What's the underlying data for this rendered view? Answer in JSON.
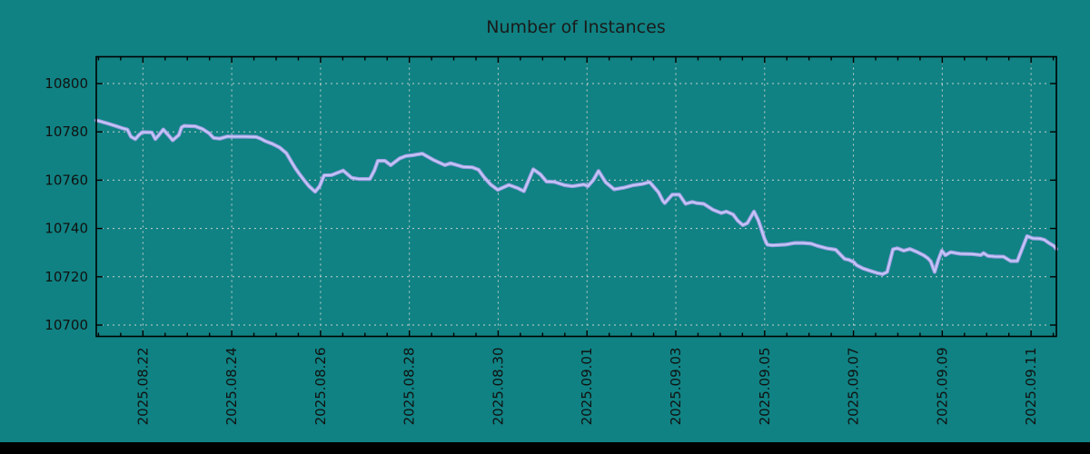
{
  "title": "Number of Instances",
  "colors": {
    "background": "#108283",
    "line_edge": "#9e9ee4",
    "line_core": "#c9c9f7",
    "grid": "#c9cfcf",
    "axis": "#000000",
    "text": "#111111",
    "bottom_bar": "#000000"
  },
  "chart_data": {
    "type": "line",
    "title": "Number of Instances",
    "xlabel": "",
    "ylabel": "",
    "legend": null,
    "grid": true,
    "x_axis": {
      "unit": "days relative to 2025.08.22",
      "tick_values": [
        0,
        2,
        4,
        6,
        8,
        10,
        12,
        14,
        16,
        18,
        20
      ],
      "tick_labels": [
        "2025.08.22",
        "2025.08.24",
        "2025.08.26",
        "2025.08.28",
        "2025.08.30",
        "2025.09.01",
        "2025.09.03",
        "2025.09.05",
        "2025.09.07",
        "2025.09.09",
        "2025.09.11"
      ],
      "minor_tick_step": 0.5,
      "range": [
        -1.05,
        20.57
      ]
    },
    "y_axis": {
      "tick_values": [
        10700,
        10720,
        10740,
        10760,
        10780,
        10800
      ],
      "tick_labels": [
        "10700",
        "10720",
        "10740",
        "10760",
        "10780",
        "10800"
      ],
      "range": [
        10695.3,
        10811.1
      ]
    },
    "series": [
      {
        "name": "instances",
        "points": [
          [
            -1.05,
            10784.8
          ],
          [
            -0.97,
            10784.4
          ],
          [
            -0.8,
            10783.5
          ],
          [
            -0.62,
            10782.5
          ],
          [
            -0.46,
            10781.5
          ],
          [
            -0.35,
            10781.0
          ],
          [
            -0.27,
            10778.0
          ],
          [
            -0.17,
            10777.0
          ],
          [
            -0.09,
            10778.7
          ],
          [
            -0.01,
            10779.9
          ],
          [
            0.2,
            10779.8
          ],
          [
            0.28,
            10777.0
          ],
          [
            0.36,
            10778.7
          ],
          [
            0.46,
            10781.0
          ],
          [
            0.57,
            10778.7
          ],
          [
            0.67,
            10776.5
          ],
          [
            0.81,
            10778.7
          ],
          [
            0.87,
            10781.9
          ],
          [
            0.93,
            10782.5
          ],
          [
            1.18,
            10782.3
          ],
          [
            1.34,
            10781.2
          ],
          [
            1.49,
            10779.4
          ],
          [
            1.59,
            10777.5
          ],
          [
            1.73,
            10777.2
          ],
          [
            1.9,
            10778.1
          ],
          [
            2.0,
            10778.0
          ],
          [
            2.3,
            10778.0
          ],
          [
            2.55,
            10777.9
          ],
          [
            2.65,
            10777.2
          ],
          [
            2.75,
            10776.2
          ],
          [
            2.92,
            10775.0
          ],
          [
            3.08,
            10773.5
          ],
          [
            3.23,
            10771.2
          ],
          [
            3.33,
            10768.1
          ],
          [
            3.43,
            10765.0
          ],
          [
            3.53,
            10762.4
          ],
          [
            3.63,
            10760.0
          ],
          [
            3.74,
            10757.5
          ],
          [
            3.88,
            10755.2
          ],
          [
            3.98,
            10757.5
          ],
          [
            4.08,
            10762.0
          ],
          [
            4.25,
            10762.1
          ],
          [
            4.51,
            10764.0
          ],
          [
            4.7,
            10761.0
          ],
          [
            4.86,
            10760.5
          ],
          [
            5.11,
            10760.5
          ],
          [
            5.21,
            10764.0
          ],
          [
            5.29,
            10768.0
          ],
          [
            5.45,
            10768.0
          ],
          [
            5.58,
            10766.2
          ],
          [
            5.78,
            10769.0
          ],
          [
            5.92,
            10770.0
          ],
          [
            6.07,
            10770.3
          ],
          [
            6.29,
            10771.0
          ],
          [
            6.54,
            10768.4
          ],
          [
            6.8,
            10766.2
          ],
          [
            6.93,
            10767.0
          ],
          [
            7.21,
            10765.5
          ],
          [
            7.42,
            10765.3
          ],
          [
            7.56,
            10764.3
          ],
          [
            7.68,
            10761.3
          ],
          [
            7.83,
            10758.2
          ],
          [
            7.99,
            10756.0
          ],
          [
            8.24,
            10758.0
          ],
          [
            8.44,
            10756.7
          ],
          [
            8.58,
            10755.4
          ],
          [
            8.79,
            10764.5
          ],
          [
            8.95,
            10762.4
          ],
          [
            9.09,
            10759.4
          ],
          [
            9.26,
            10759.3
          ],
          [
            9.5,
            10757.9
          ],
          [
            9.67,
            10757.5
          ],
          [
            9.93,
            10758.2
          ],
          [
            10.02,
            10757.5
          ],
          [
            10.14,
            10760.0
          ],
          [
            10.26,
            10763.8
          ],
          [
            10.42,
            10759.1
          ],
          [
            10.61,
            10756.2
          ],
          [
            10.83,
            10756.9
          ],
          [
            11.04,
            10757.9
          ],
          [
            11.24,
            10758.4
          ],
          [
            11.41,
            10759.2
          ],
          [
            11.61,
            10755.0
          ],
          [
            11.71,
            10751.4
          ],
          [
            11.75,
            10750.5
          ],
          [
            11.92,
            10754.0
          ],
          [
            12.08,
            10754.0
          ],
          [
            12.22,
            10750.2
          ],
          [
            12.37,
            10751.0
          ],
          [
            12.47,
            10750.5
          ],
          [
            12.63,
            10750.2
          ],
          [
            12.84,
            10747.7
          ],
          [
            13.02,
            10746.4
          ],
          [
            13.14,
            10747.0
          ],
          [
            13.29,
            10745.8
          ],
          [
            13.39,
            10743.3
          ],
          [
            13.51,
            10741.4
          ],
          [
            13.61,
            10742.2
          ],
          [
            13.76,
            10747.0
          ],
          [
            13.86,
            10743.3
          ],
          [
            13.92,
            10740.0
          ],
          [
            14.0,
            10735.6
          ],
          [
            14.06,
            10733.3
          ],
          [
            14.17,
            10733.0
          ],
          [
            14.47,
            10733.3
          ],
          [
            14.68,
            10734.0
          ],
          [
            14.88,
            10734.0
          ],
          [
            15.05,
            10733.7
          ],
          [
            15.19,
            10732.8
          ],
          [
            15.39,
            10731.8
          ],
          [
            15.6,
            10731.2
          ],
          [
            15.8,
            10727.4
          ],
          [
            15.9,
            10727.0
          ],
          [
            16.01,
            10726.0
          ],
          [
            16.07,
            10724.8
          ],
          [
            16.21,
            10723.5
          ],
          [
            16.35,
            10722.6
          ],
          [
            16.54,
            10721.5
          ],
          [
            16.66,
            10721.1
          ],
          [
            16.76,
            10722.0
          ],
          [
            16.89,
            10731.4
          ],
          [
            16.99,
            10731.8
          ],
          [
            17.13,
            10730.8
          ],
          [
            17.27,
            10731.5
          ],
          [
            17.44,
            10730.2
          ],
          [
            17.58,
            10728.9
          ],
          [
            17.68,
            10727.6
          ],
          [
            17.74,
            10726.4
          ],
          [
            17.83,
            10722.0
          ],
          [
            17.91,
            10727.0
          ],
          [
            17.99,
            10730.8
          ],
          [
            18.07,
            10728.9
          ],
          [
            18.19,
            10730.2
          ],
          [
            18.4,
            10729.5
          ],
          [
            18.67,
            10729.4
          ],
          [
            18.87,
            10729.0
          ],
          [
            18.93,
            10729.8
          ],
          [
            19.03,
            10728.6
          ],
          [
            19.18,
            10728.4
          ],
          [
            19.38,
            10728.3
          ],
          [
            19.54,
            10726.5
          ],
          [
            19.69,
            10726.5
          ],
          [
            19.91,
            10736.8
          ],
          [
            20.04,
            10735.9
          ],
          [
            20.2,
            10735.8
          ],
          [
            20.3,
            10735.3
          ],
          [
            20.4,
            10734.0
          ],
          [
            20.51,
            10732.8
          ],
          [
            20.57,
            10731.5
          ]
        ]
      }
    ]
  }
}
